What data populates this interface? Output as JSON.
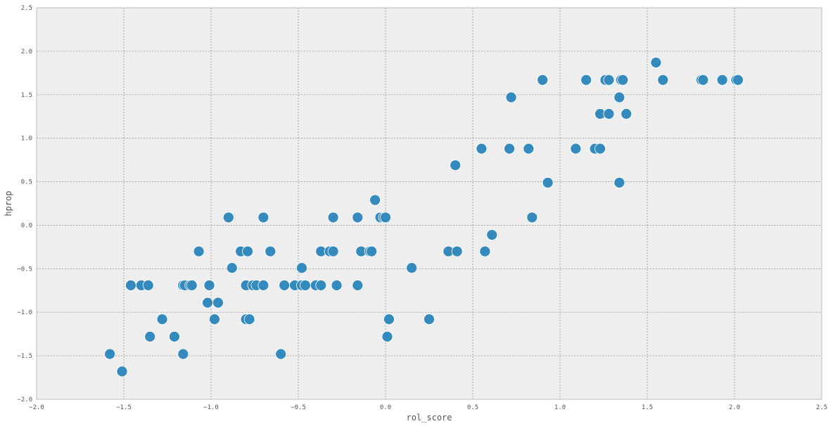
{
  "chart_data": {
    "type": "scatter",
    "title": "",
    "xlabel": "rol_score",
    "ylabel": "hprop",
    "xlim": [
      -2.0,
      2.5
    ],
    "ylim": [
      -2.0,
      2.5
    ],
    "xticks": [
      -2.0,
      -1.5,
      -1.0,
      -0.5,
      0.0,
      0.5,
      1.0,
      1.5,
      2.0,
      2.5
    ],
    "yticks": [
      -2.0,
      -1.5,
      -1.0,
      -0.5,
      0.0,
      0.5,
      1.0,
      1.5,
      2.0,
      2.5
    ],
    "xtick_labels": [
      "−2.0",
      "−1.5",
      "−1.0",
      "−0.5",
      "0.0",
      "0.5",
      "1.0",
      "1.5",
      "2.0",
      "2.5"
    ],
    "ytick_labels": [
      "−2.0",
      "−1.5",
      "−1.0",
      "−0.5",
      "0.0",
      "0.5",
      "1.0",
      "1.5",
      "2.0",
      "2.5"
    ],
    "grid": true,
    "colors": {
      "point": "#348abd",
      "point_edge": "#ffffff",
      "background": "#eeeeee",
      "grid": "#999999",
      "frame": "#bcbcbc"
    },
    "points": [
      [
        -1.58,
        -1.48
      ],
      [
        -1.51,
        -1.68
      ],
      [
        -1.46,
        -0.69
      ],
      [
        -1.4,
        -0.69
      ],
      [
        -1.36,
        -0.69
      ],
      [
        -1.35,
        -1.28
      ],
      [
        -1.28,
        -1.08
      ],
      [
        -1.21,
        -1.28
      ],
      [
        -1.16,
        -1.48
      ],
      [
        -1.16,
        -0.69
      ],
      [
        -1.15,
        -0.69
      ],
      [
        -1.12,
        -0.69
      ],
      [
        -1.11,
        -0.69
      ],
      [
        -1.07,
        -0.3
      ],
      [
        -1.02,
        -0.89
      ],
      [
        -1.01,
        -0.69
      ],
      [
        -0.98,
        -1.08
      ],
      [
        -0.96,
        -0.89
      ],
      [
        -0.9,
        0.09
      ],
      [
        -0.88,
        -0.49
      ],
      [
        -0.83,
        -0.3
      ],
      [
        -0.8,
        -0.69
      ],
      [
        -0.8,
        -1.08
      ],
      [
        -0.79,
        -0.3
      ],
      [
        -0.78,
        -1.08
      ],
      [
        -0.76,
        -0.69
      ],
      [
        -0.74,
        -0.69
      ],
      [
        -0.7,
        0.09
      ],
      [
        -0.7,
        -0.69
      ],
      [
        -0.66,
        -0.3
      ],
      [
        -0.6,
        -1.48
      ],
      [
        -0.58,
        -0.69
      ],
      [
        -0.52,
        -0.69
      ],
      [
        -0.48,
        -0.69
      ],
      [
        -0.48,
        -0.49
      ],
      [
        -0.46,
        -0.69
      ],
      [
        -0.4,
        -0.69
      ],
      [
        -0.37,
        -0.3
      ],
      [
        -0.37,
        -0.69
      ],
      [
        -0.32,
        -0.3
      ],
      [
        -0.3,
        -0.3
      ],
      [
        -0.3,
        0.09
      ],
      [
        -0.28,
        -0.69
      ],
      [
        -0.16,
        0.09
      ],
      [
        -0.16,
        -0.69
      ],
      [
        -0.14,
        -0.3
      ],
      [
        -0.09,
        -0.3
      ],
      [
        -0.08,
        -0.3
      ],
      [
        -0.06,
        0.29
      ],
      [
        -0.03,
        0.09
      ],
      [
        -0.01,
        0.09
      ],
      [
        0.0,
        0.09
      ],
      [
        0.01,
        -1.28
      ],
      [
        0.02,
        -1.08
      ],
      [
        0.15,
        -0.49
      ],
      [
        0.25,
        -1.08
      ],
      [
        0.36,
        -0.3
      ],
      [
        0.4,
        0.69
      ],
      [
        0.41,
        -0.3
      ],
      [
        0.55,
        0.88
      ],
      [
        0.57,
        -0.3
      ],
      [
        0.61,
        -0.11
      ],
      [
        0.71,
        0.88
      ],
      [
        0.72,
        1.47
      ],
      [
        0.82,
        0.88
      ],
      [
        0.84,
        0.09
      ],
      [
        0.9,
        1.67
      ],
      [
        0.93,
        0.49
      ],
      [
        1.09,
        0.88
      ],
      [
        1.15,
        1.67
      ],
      [
        1.2,
        0.88
      ],
      [
        1.23,
        0.88
      ],
      [
        1.23,
        1.28
      ],
      [
        1.26,
        1.67
      ],
      [
        1.28,
        1.67
      ],
      [
        1.28,
        1.28
      ],
      [
        1.34,
        1.47
      ],
      [
        1.34,
        0.49
      ],
      [
        1.35,
        1.67
      ],
      [
        1.36,
        1.67
      ],
      [
        1.38,
        1.28
      ],
      [
        1.55,
        1.87
      ],
      [
        1.59,
        1.67
      ],
      [
        1.81,
        1.67
      ],
      [
        1.82,
        1.67
      ],
      [
        1.93,
        1.67
      ],
      [
        2.01,
        1.67
      ],
      [
        2.02,
        1.67
      ]
    ]
  }
}
